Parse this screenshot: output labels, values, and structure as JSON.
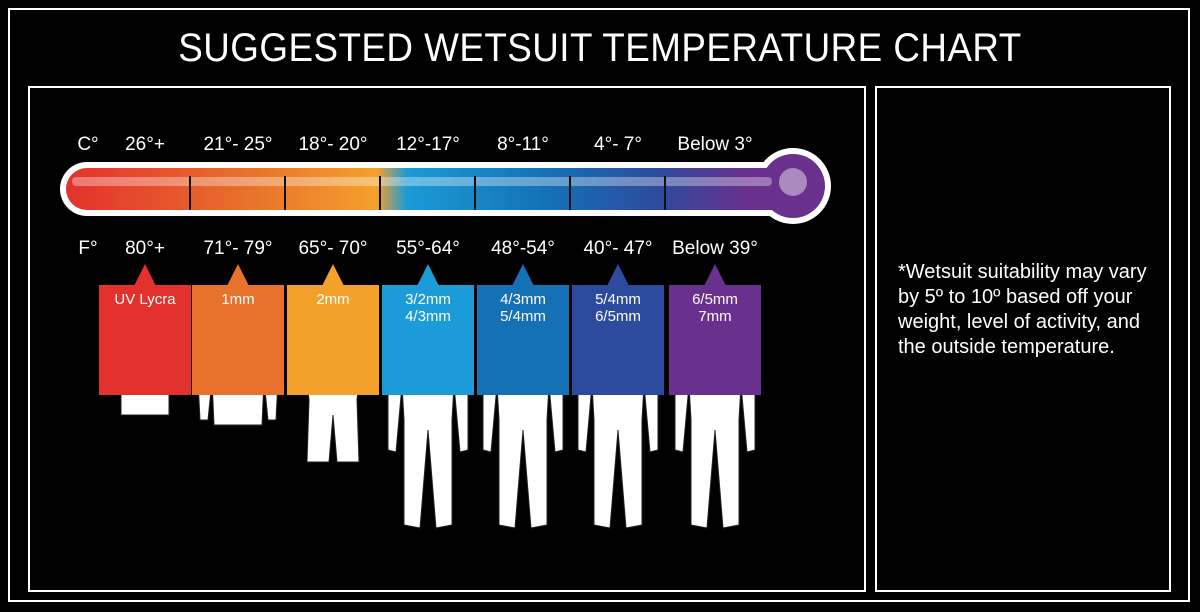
{
  "title": "SUGGESTED WETSUIT TEMPERATURE CHART",
  "celsius_unit": "C°",
  "fahrenheit_unit": "F°",
  "ranges": [
    {
      "c": "26°+",
      "f": "80°+",
      "suit": [
        "UV Lycra"
      ],
      "color": "#e3312d",
      "figure": "short-top"
    },
    {
      "c": "21°- 25°",
      "f": "71°- 79°",
      "suit": [
        "1mm"
      ],
      "color": "#e8722b",
      "figure": "long-top"
    },
    {
      "c": "18°- 20°",
      "f": "65°- 70°",
      "suit": [
        "2mm"
      ],
      "color": "#f4a12c",
      "figure": "spring"
    },
    {
      "c": "12°-17°",
      "f": "55°-64°",
      "suit": [
        "3/2mm",
        "4/3mm"
      ],
      "color": "#1b9bd7",
      "figure": "full"
    },
    {
      "c": "8°-11°",
      "f": "48°-54°",
      "suit": [
        "4/3mm",
        "5/4mm"
      ],
      "color": "#1571b6",
      "figure": "full"
    },
    {
      "c": "4°- 7°",
      "f": "40°- 47°",
      "suit": [
        "5/4mm",
        "6/5mm"
      ],
      "color": "#2d4b9e",
      "figure": "hooded"
    },
    {
      "c": "Below 3°",
      "f": "Below 39°",
      "suit": [
        "6/5mm",
        "7mm"
      ],
      "color": "#69308d",
      "figure": "hooded"
    }
  ],
  "note": "*Wetsuit suitability may vary by 5º to 10º based off your weight, level of activity, and the outside temperature."
}
